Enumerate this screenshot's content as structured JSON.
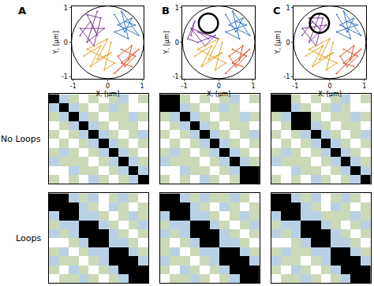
{
  "chart_data": [
    {
      "type": "line",
      "title": "A",
      "xlabel": "X, [μm]",
      "ylabel": "Y, [μm]",
      "xlim": [
        -1.05,
        1.05
      ],
      "ylim": [
        -1.05,
        1.05
      ],
      "xticks": [
        -1,
        0,
        1
      ],
      "yticks": [
        -1,
        0,
        1
      ],
      "series": [
        {
          "color": "#7e3f98",
          "x": [
            -0.8,
            -0.5,
            -0.3,
            -0.6,
            -0.2,
            -0.4,
            -0.8,
            -0.1,
            -0.6,
            -0.3
          ],
          "y": [
            0.2,
            0.6,
            0.2,
            0.8,
            0.7,
            -0.1,
            0.4,
            0.4,
            0.0,
            0.9
          ]
        },
        {
          "color": "#3b78c2",
          "x": [
            0.2,
            0.5,
            0.7,
            0.3,
            0.9,
            0.4,
            0.6,
            0.2,
            0.8,
            0.5
          ],
          "y": [
            0.8,
            0.3,
            0.7,
            0.5,
            0.2,
            0.9,
            0.1,
            0.3,
            0.5,
            0.6
          ]
        },
        {
          "color": "#e6a020",
          "x": [
            -0.7,
            -0.2,
            -0.5,
            0.1,
            -0.3,
            0.0,
            -0.6,
            0.2,
            -0.1,
            0.1
          ],
          "y": [
            -0.4,
            -0.1,
            -0.7,
            -0.3,
            -0.5,
            0.1,
            -0.2,
            -0.6,
            -0.8,
            0.0
          ]
        },
        {
          "color": "#d9532b",
          "x": [
            0.4,
            0.8,
            0.5,
            0.3,
            0.7,
            0.6,
            0.2,
            0.9,
            0.4,
            0.7
          ],
          "y": [
            -0.2,
            -0.4,
            -0.7,
            -0.4,
            -0.1,
            -0.5,
            -0.9,
            -0.2,
            -0.6,
            -0.7
          ]
        }
      ]
    },
    {
      "type": "line",
      "title": "B",
      "xlabel": "X, [μm]",
      "ylabel": "Y, [μm]",
      "xlim": [
        -1.05,
        1.05
      ],
      "ylim": [
        -1.05,
        1.05
      ],
      "xticks": [
        -1,
        0,
        1
      ],
      "yticks": [
        -1,
        0,
        1
      ],
      "series": [
        {
          "color": "#7e3f98",
          "x": [
            -0.8,
            -0.7,
            -0.9,
            -0.6,
            -0.1,
            -0.4,
            -0.8,
            0.0,
            -0.6,
            -0.3
          ],
          "y": [
            0.2,
            0.6,
            0.1,
            0.0,
            0.2,
            -0.1,
            0.4,
            0.1,
            0.3,
            0.1
          ]
        },
        {
          "color": "#3b78c2",
          "x": [
            0.2,
            0.5,
            0.7,
            0.3,
            0.9,
            0.4,
            0.6,
            0.2,
            0.8,
            0.5
          ],
          "y": [
            0.8,
            0.3,
            0.7,
            0.5,
            0.2,
            0.9,
            0.1,
            0.3,
            0.5,
            0.6
          ]
        },
        {
          "color": "#e6a020",
          "x": [
            -0.7,
            -0.2,
            -0.5,
            0.1,
            -0.3,
            0.0,
            -0.6,
            0.2,
            -0.1,
            0.1
          ],
          "y": [
            -0.4,
            -0.1,
            -0.7,
            -0.3,
            -0.5,
            0.1,
            -0.2,
            -0.6,
            -0.8,
            0.0
          ]
        },
        {
          "color": "#d9532b",
          "x": [
            0.4,
            0.8,
            0.5,
            0.3,
            0.7,
            0.6,
            0.2,
            0.9,
            0.4,
            0.7
          ],
          "y": [
            -0.2,
            -0.4,
            -0.7,
            -0.4,
            -0.1,
            -0.5,
            -0.9,
            -0.2,
            -0.6,
            -0.7
          ]
        },
        {
          "type": "circle",
          "color": "#000000",
          "center": [
            -0.3,
            0.55
          ],
          "radius": 0.28
        }
      ]
    },
    {
      "type": "line",
      "title": "C",
      "xlabel": "X, [μm]",
      "ylabel": "Y, [μm]",
      "xlim": [
        -1.05,
        1.05
      ],
      "ylim": [
        -1.05,
        1.05
      ],
      "xticks": [
        -1,
        0,
        1
      ],
      "yticks": [
        -1,
        0,
        1
      ],
      "series": [
        {
          "color": "#7e3f98",
          "x": [
            -0.8,
            -0.5,
            -0.3,
            -0.6,
            -0.2,
            -0.4,
            -0.8,
            -0.1,
            -0.6,
            -0.3
          ],
          "y": [
            0.2,
            0.6,
            0.4,
            0.7,
            0.7,
            -0.1,
            0.4,
            0.5,
            0.0,
            0.8
          ]
        },
        {
          "color": "#3b78c2",
          "x": [
            0.2,
            0.5,
            0.7,
            0.3,
            0.9,
            0.4,
            0.6,
            0.2,
            0.8,
            0.5
          ],
          "y": [
            0.8,
            0.3,
            0.7,
            0.5,
            0.2,
            0.9,
            0.1,
            0.3,
            0.5,
            0.6
          ]
        },
        {
          "color": "#e6a020",
          "x": [
            -0.7,
            -0.2,
            -0.5,
            0.1,
            -0.3,
            0.0,
            -0.6,
            0.2,
            -0.1,
            0.1
          ],
          "y": [
            -0.4,
            -0.1,
            -0.7,
            -0.3,
            -0.5,
            0.1,
            -0.2,
            -0.6,
            -0.8,
            0.0
          ]
        },
        {
          "color": "#d9532b",
          "x": [
            0.4,
            0.8,
            0.5,
            0.3,
            0.7,
            0.6,
            0.2,
            0.9,
            0.4,
            0.7
          ],
          "y": [
            -0.2,
            -0.4,
            -0.7,
            -0.4,
            -0.1,
            -0.5,
            -0.9,
            -0.2,
            -0.6,
            -0.7
          ]
        },
        {
          "type": "circle",
          "color": "#000000",
          "center": [
            -0.3,
            0.55
          ],
          "radius": 0.28
        }
      ]
    },
    {
      "type": "heatmap",
      "row_label": "No Loops",
      "tick_labels": false,
      "zlim": [
        0,
        3
      ],
      "colors": [
        "#ffffff",
        "#cbd9b8",
        "#b9d0e4",
        "#000000"
      ],
      "z": [
        [
          3,
          2,
          1,
          0,
          1,
          0,
          1,
          2,
          0,
          1
        ],
        [
          2,
          3,
          2,
          1,
          0,
          1,
          2,
          1,
          0,
          0
        ],
        [
          1,
          2,
          3,
          2,
          1,
          0,
          1,
          1,
          2,
          1
        ],
        [
          0,
          1,
          2,
          3,
          2,
          1,
          0,
          1,
          1,
          0
        ],
        [
          1,
          0,
          1,
          2,
          3,
          2,
          1,
          0,
          1,
          2
        ],
        [
          0,
          1,
          0,
          1,
          2,
          3,
          2,
          1,
          0,
          1
        ],
        [
          1,
          2,
          1,
          0,
          1,
          2,
          3,
          2,
          1,
          0
        ],
        [
          2,
          1,
          1,
          1,
          0,
          1,
          2,
          3,
          2,
          1
        ],
        [
          0,
          0,
          2,
          1,
          1,
          0,
          1,
          2,
          3,
          2
        ],
        [
          1,
          0,
          1,
          0,
          2,
          1,
          0,
          1,
          2,
          3
        ]
      ]
    },
    {
      "type": "heatmap",
      "tick_labels": false,
      "zlim": [
        0,
        3
      ],
      "colors": [
        "#ffffff",
        "#cbd9b8",
        "#b9d0e4",
        "#000000"
      ],
      "z": [
        [
          3,
          3,
          1,
          0,
          1,
          0,
          1,
          2,
          0,
          1
        ],
        [
          3,
          3,
          2,
          1,
          0,
          1,
          2,
          1,
          0,
          0
        ],
        [
          1,
          2,
          3,
          2,
          1,
          0,
          1,
          1,
          2,
          1
        ],
        [
          0,
          1,
          2,
          3,
          2,
          1,
          0,
          1,
          1,
          0
        ],
        [
          1,
          0,
          1,
          2,
          3,
          2,
          1,
          0,
          1,
          2
        ],
        [
          0,
          1,
          0,
          1,
          2,
          3,
          2,
          1,
          0,
          1
        ],
        [
          1,
          2,
          1,
          0,
          1,
          2,
          3,
          2,
          1,
          0
        ],
        [
          2,
          1,
          1,
          1,
          0,
          1,
          2,
          3,
          2,
          1
        ],
        [
          0,
          0,
          2,
          1,
          1,
          0,
          1,
          2,
          3,
          3
        ],
        [
          1,
          0,
          1,
          0,
          2,
          1,
          0,
          1,
          3,
          3
        ]
      ]
    },
    {
      "type": "heatmap",
      "tick_labels": false,
      "zlim": [
        0,
        3
      ],
      "colors": [
        "#ffffff",
        "#cbd9b8",
        "#b9d0e4",
        "#000000"
      ],
      "z": [
        [
          3,
          3,
          1,
          0,
          1,
          0,
          1,
          2,
          0,
          1
        ],
        [
          3,
          3,
          2,
          1,
          0,
          1,
          2,
          1,
          0,
          0
        ],
        [
          1,
          2,
          3,
          3,
          1,
          0,
          1,
          1,
          2,
          1
        ],
        [
          0,
          1,
          3,
          3,
          2,
          1,
          0,
          1,
          1,
          0
        ],
        [
          1,
          0,
          1,
          2,
          3,
          2,
          1,
          0,
          1,
          2
        ],
        [
          0,
          1,
          0,
          1,
          2,
          3,
          2,
          1,
          0,
          1
        ],
        [
          1,
          2,
          1,
          0,
          1,
          2,
          3,
          2,
          1,
          0
        ],
        [
          2,
          1,
          1,
          1,
          0,
          1,
          2,
          3,
          2,
          1
        ],
        [
          0,
          0,
          2,
          1,
          1,
          0,
          1,
          2,
          3,
          2
        ],
        [
          1,
          0,
          1,
          0,
          2,
          1,
          0,
          1,
          2,
          3
        ]
      ]
    },
    {
      "type": "heatmap",
      "row_label": "Loops",
      "tick_labels": false,
      "zlim": [
        0,
        3
      ],
      "colors": [
        "#ffffff",
        "#cbd9b8",
        "#b9d0e4",
        "#000000"
      ],
      "z": [
        [
          3,
          3,
          2,
          1,
          2,
          0,
          1,
          2,
          1,
          0
        ],
        [
          3,
          3,
          3,
          2,
          1,
          0,
          2,
          1,
          0,
          1
        ],
        [
          2,
          3,
          3,
          2,
          2,
          1,
          0,
          1,
          2,
          1
        ],
        [
          1,
          2,
          2,
          3,
          3,
          2,
          1,
          0,
          1,
          2
        ],
        [
          2,
          1,
          2,
          3,
          3,
          3,
          2,
          1,
          0,
          1
        ],
        [
          0,
          0,
          1,
          2,
          3,
          3,
          2,
          2,
          1,
          0
        ],
        [
          1,
          2,
          0,
          1,
          2,
          2,
          3,
          3,
          2,
          1
        ],
        [
          2,
          1,
          1,
          0,
          1,
          2,
          3,
          3,
          3,
          2
        ],
        [
          1,
          0,
          2,
          1,
          0,
          1,
          2,
          3,
          3,
          3
        ],
        [
          0,
          1,
          1,
          2,
          1,
          0,
          1,
          2,
          3,
          3
        ]
      ]
    },
    {
      "type": "heatmap",
      "tick_labels": false,
      "zlim": [
        0,
        3
      ],
      "colors": [
        "#ffffff",
        "#cbd9b8",
        "#b9d0e4",
        "#000000"
      ],
      "z": [
        [
          3,
          3,
          2,
          1,
          2,
          1,
          1,
          2,
          1,
          0
        ],
        [
          3,
          3,
          3,
          2,
          1,
          0,
          2,
          1,
          0,
          1
        ],
        [
          2,
          3,
          3,
          2,
          2,
          1,
          0,
          1,
          2,
          1
        ],
        [
          1,
          2,
          2,
          3,
          3,
          2,
          1,
          0,
          1,
          2
        ],
        [
          2,
          1,
          2,
          3,
          3,
          3,
          2,
          1,
          0,
          1
        ],
        [
          1,
          0,
          1,
          2,
          3,
          3,
          2,
          2,
          1,
          0
        ],
        [
          1,
          2,
          0,
          1,
          2,
          2,
          3,
          3,
          2,
          1
        ],
        [
          2,
          1,
          1,
          0,
          1,
          2,
          3,
          3,
          3,
          2
        ],
        [
          1,
          0,
          2,
          1,
          0,
          1,
          2,
          3,
          3,
          3
        ],
        [
          0,
          1,
          1,
          2,
          1,
          0,
          1,
          2,
          3,
          3
        ]
      ]
    },
    {
      "type": "heatmap",
      "tick_labels": false,
      "zlim": [
        0,
        3
      ],
      "colors": [
        "#ffffff",
        "#cbd9b8",
        "#b9d0e4",
        "#000000"
      ],
      "z": [
        [
          3,
          3,
          2,
          1,
          2,
          0,
          1,
          2,
          1,
          0
        ],
        [
          3,
          3,
          3,
          2,
          1,
          0,
          2,
          1,
          0,
          1
        ],
        [
          2,
          3,
          3,
          2,
          2,
          1,
          1,
          1,
          2,
          1
        ],
        [
          1,
          2,
          2,
          3,
          3,
          2,
          1,
          0,
          1,
          2
        ],
        [
          2,
          1,
          2,
          3,
          3,
          3,
          2,
          1,
          0,
          1
        ],
        [
          0,
          0,
          1,
          2,
          3,
          3,
          2,
          2,
          1,
          0
        ],
        [
          1,
          2,
          1,
          1,
          2,
          2,
          3,
          3,
          2,
          1
        ],
        [
          2,
          1,
          1,
          0,
          1,
          2,
          3,
          3,
          3,
          2
        ],
        [
          1,
          0,
          2,
          1,
          0,
          1,
          2,
          3,
          3,
          3
        ],
        [
          0,
          1,
          1,
          2,
          1,
          0,
          1,
          2,
          3,
          3
        ]
      ]
    }
  ]
}
